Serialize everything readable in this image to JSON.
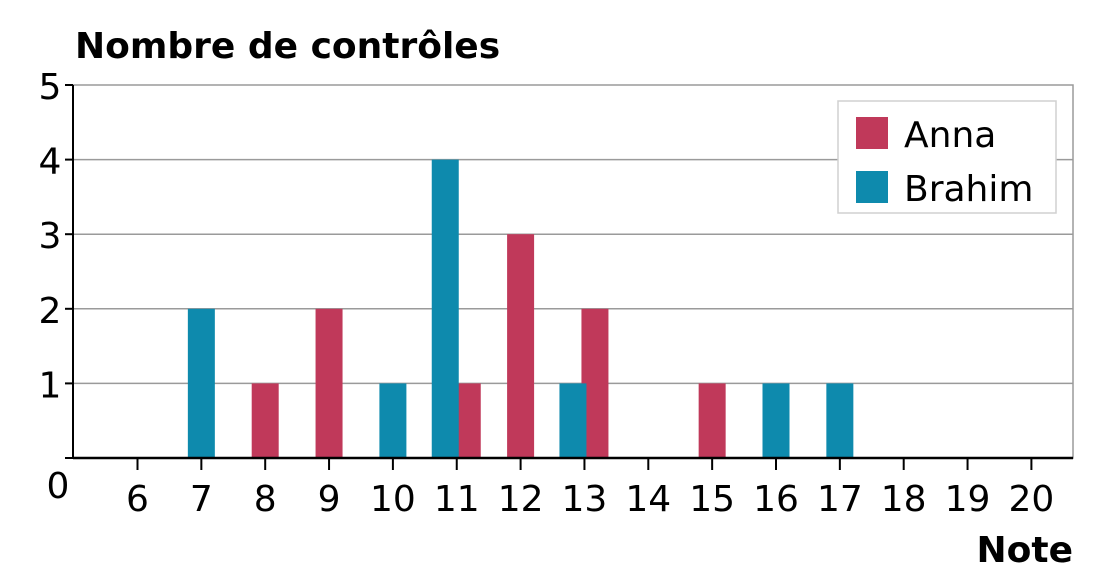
{
  "chart_data": {
    "type": "bar",
    "title": "Nombre de contrôles",
    "xlabel": "Note",
    "ylabel": "Nombre de contrôles",
    "x_ticks": [
      6,
      7,
      8,
      9,
      10,
      11,
      12,
      13,
      14,
      15,
      16,
      17,
      18,
      19,
      20
    ],
    "x_tick_labels": [
      "6",
      "7",
      "8",
      "9",
      "10",
      "11",
      "12",
      "13",
      "14",
      "15",
      "16",
      "17",
      "18",
      "19",
      "20"
    ],
    "y_ticks": [
      0,
      1,
      2,
      3,
      4,
      5
    ],
    "y_tick_labels": [
      "0",
      "1",
      "2",
      "3",
      "4",
      "5"
    ],
    "ylim": [
      0,
      5
    ],
    "grid": true,
    "legend_position": "top-right",
    "series": [
      {
        "name": "Anna",
        "color": "#c0395a",
        "points": [
          {
            "x": 8,
            "y": 1
          },
          {
            "x": 9,
            "y": 2
          },
          {
            "x": 11,
            "y": 1
          },
          {
            "x": 12,
            "y": 3
          },
          {
            "x": 13,
            "y": 2
          },
          {
            "x": 15,
            "y": 1
          }
        ]
      },
      {
        "name": "Brahim",
        "color": "#0e8aad",
        "points": [
          {
            "x": 7,
            "y": 2
          },
          {
            "x": 10,
            "y": 1
          },
          {
            "x": 11,
            "y": 4
          },
          {
            "x": 13,
            "y": 1
          },
          {
            "x": 16,
            "y": 1
          },
          {
            "x": 17,
            "y": 1
          }
        ]
      }
    ]
  }
}
